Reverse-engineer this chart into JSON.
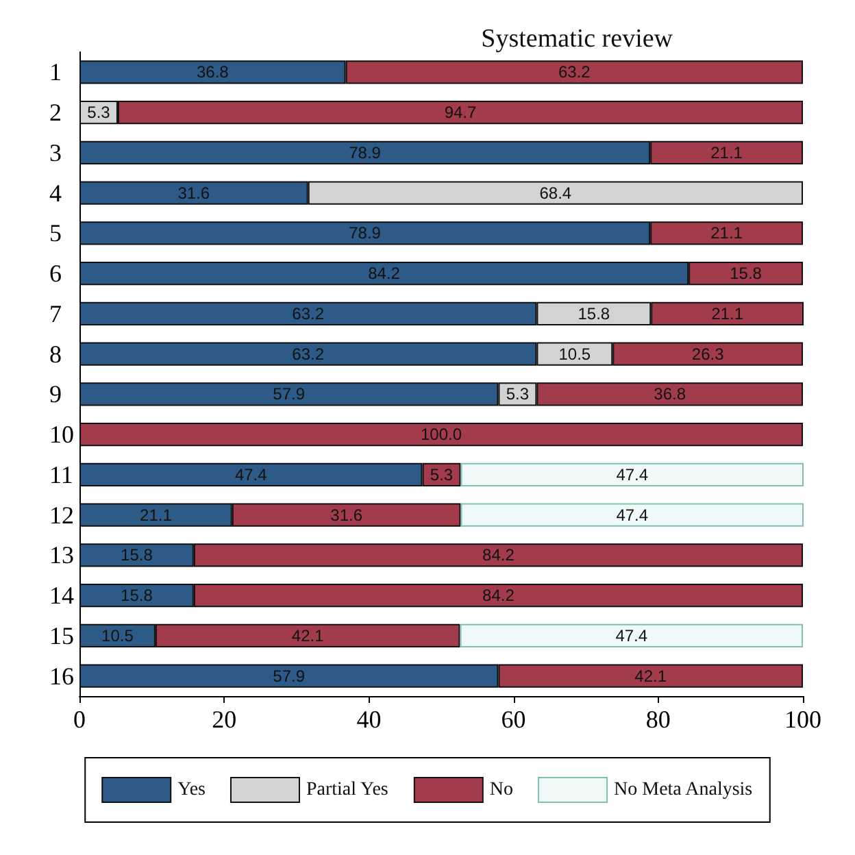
{
  "chart_data": {
    "type": "bar",
    "orientation": "horizontal",
    "stacked": true,
    "title": "Systematic review",
    "categories": [
      "1",
      "2",
      "3",
      "4",
      "5",
      "6",
      "7",
      "8",
      "9",
      "10",
      "11",
      "12",
      "13",
      "14",
      "15",
      "16"
    ],
    "series": [
      {
        "name": "Yes",
        "color": "#2e5a87",
        "values": [
          36.8,
          null,
          78.9,
          31.6,
          78.9,
          84.2,
          63.2,
          63.2,
          57.9,
          null,
          47.4,
          21.1,
          15.8,
          15.8,
          10.5,
          57.9
        ],
        "value_labels": [
          "36.8",
          null,
          "78.9",
          "31.6",
          "78.9",
          "84.2",
          "63.2",
          "63.2",
          "57.9",
          null,
          "47.4",
          "21.1",
          "15.8",
          "15.8",
          "10.5",
          "57.9"
        ]
      },
      {
        "name": "Partial Yes",
        "color": "#d3d3d3",
        "values": [
          null,
          5.3,
          null,
          68.4,
          null,
          null,
          15.8,
          10.5,
          5.3,
          null,
          null,
          null,
          null,
          null,
          null,
          null
        ],
        "value_labels": [
          null,
          "5.3",
          null,
          "68.4",
          null,
          null,
          "15.8",
          "10.5",
          "5.3",
          null,
          null,
          null,
          null,
          null,
          null,
          null
        ]
      },
      {
        "name": "No",
        "color": "#a23c4c",
        "values": [
          63.2,
          94.7,
          21.1,
          null,
          21.1,
          15.8,
          21.1,
          26.3,
          36.8,
          100.0,
          5.3,
          31.6,
          84.2,
          84.2,
          42.1,
          42.1
        ],
        "value_labels": [
          "63.2",
          "94.7",
          "21.1",
          null,
          "21.1",
          "15.8",
          "21.1",
          "26.3",
          "36.8",
          "100.0",
          "5.3",
          "31.6",
          "84.2",
          "84.2",
          "42.1",
          "42.1"
        ]
      },
      {
        "name": "No Meta Analysis",
        "color": "#effaf8",
        "values": [
          null,
          null,
          null,
          null,
          null,
          null,
          null,
          null,
          null,
          null,
          47.4,
          47.4,
          null,
          null,
          47.4,
          null
        ],
        "value_labels": [
          null,
          null,
          null,
          null,
          null,
          null,
          null,
          null,
          null,
          null,
          "47.4",
          "47.4",
          null,
          null,
          "47.4",
          null
        ]
      }
    ],
    "xlim": [
      0,
      100
    ],
    "xticks": [
      0,
      20,
      40,
      60,
      80,
      100
    ],
    "grid": false,
    "legend": "bottom"
  }
}
